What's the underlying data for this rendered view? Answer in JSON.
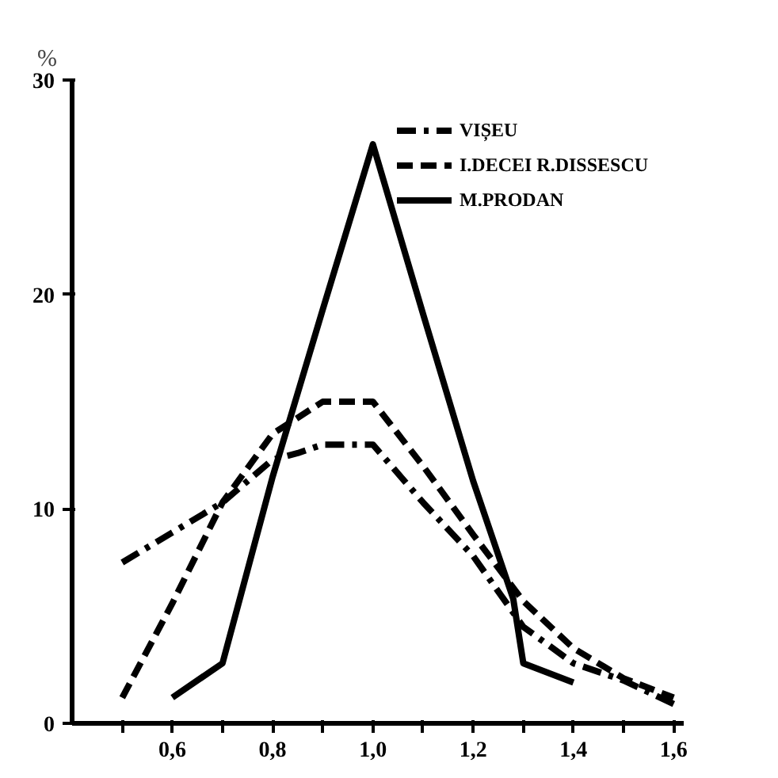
{
  "chart_data": {
    "type": "line",
    "ylabel": "%",
    "x": [
      0.5,
      0.6,
      0.7,
      0.8,
      0.9,
      1.0,
      1.1,
      1.2,
      1.3,
      1.4,
      1.5,
      1.6
    ],
    "series": [
      {
        "name": "VIȘEU",
        "color": "#000000",
        "line_style": "dashdot",
        "x": [
          0.5,
          0.6,
          0.7,
          0.8,
          0.85,
          0.9,
          1.0,
          1.1,
          1.2,
          1.3,
          1.4,
          1.5,
          1.6
        ],
        "values": [
          7.5,
          8.9,
          10.3,
          12.3,
          12.6,
          13.0,
          13.0,
          10.3,
          7.8,
          4.5,
          2.8,
          2.0,
          0.9
        ]
      },
      {
        "name": "I.DECEI R.DISSESCU",
        "color": "#000000",
        "line_style": "dashed",
        "values": [
          1.2,
          5.6,
          10.3,
          13.5,
          15.0,
          15.0,
          12.0,
          8.8,
          5.7,
          3.5,
          2.1,
          1.2
        ]
      },
      {
        "name": "M.PRODAN",
        "color": "#000000",
        "line_style": "solid",
        "x": [
          0.6,
          0.7,
          0.8,
          0.9,
          1.0,
          1.1,
          1.2,
          1.28,
          1.3,
          1.4
        ],
        "values": [
          1.2,
          2.8,
          11.5,
          19.3,
          27.0,
          19.1,
          11.3,
          5.8,
          2.8,
          1.9
        ]
      }
    ],
    "xlim": [
      0.4,
      1.62
    ],
    "ylim": [
      0,
      30
    ],
    "xticks": [
      {
        "value": 0.5,
        "label": null
      },
      {
        "value": 0.6,
        "label": "0,6"
      },
      {
        "value": 0.7,
        "label": null
      },
      {
        "value": 0.8,
        "label": "0,8"
      },
      {
        "value": 0.9,
        "label": null
      },
      {
        "value": 1.0,
        "label": "1,0"
      },
      {
        "value": 1.1,
        "label": null
      },
      {
        "value": 1.2,
        "label": "1,2"
      },
      {
        "value": 1.3,
        "label": null
      },
      {
        "value": 1.4,
        "label": "1,4"
      },
      {
        "value": 1.5,
        "label": null
      },
      {
        "value": 1.6,
        "label": "1,6"
      }
    ],
    "yticks": [
      0,
      10,
      20,
      30
    ],
    "grid": false,
    "legend": "top right",
    "marker": "none"
  }
}
